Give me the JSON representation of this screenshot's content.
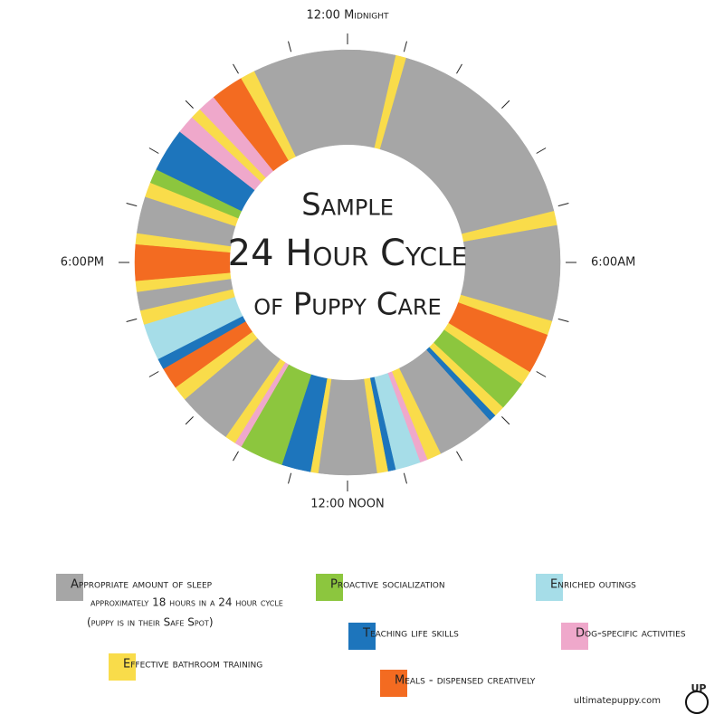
{
  "chart_data": {
    "type": "donut",
    "title": [
      "Sample",
      "24 Hour Cycle",
      "of Puppy Care"
    ],
    "xlim": [
      0,
      24
    ],
    "hour_ticks": [
      0,
      1,
      2,
      3,
      4,
      5,
      6,
      7,
      8,
      9,
      10,
      11,
      12,
      13,
      14,
      15,
      16,
      17,
      18,
      19,
      20,
      21,
      22,
      23
    ],
    "clock_labels": [
      {
        "value": 0,
        "label": "12:00 Midnight"
      },
      {
        "value": 6,
        "label": "6:00AM"
      },
      {
        "value": 12,
        "label": "12:00 NOON"
      },
      {
        "value": 18,
        "label": "6:00PM"
      }
    ],
    "series": [
      {
        "name": "Appropriate amount of sleep",
        "color": "#a6a6a6",
        "detail": [
          "approximately 18 hours in a 24 hour cycle",
          "(puppy is in their Safe Spot)"
        ]
      },
      {
        "name": "Effective bathroom training",
        "color": "#f9dc4a"
      },
      {
        "name": "Proactive socialization",
        "color": "#8cc63e"
      },
      {
        "name": "Teaching life skills",
        "color": "#1d75bc"
      },
      {
        "name": "Meals - dispensed creatively",
        "color": "#f36b21"
      },
      {
        "name": "Enriched outings",
        "color": "#a6dde8"
      },
      {
        "name": "Dog-specific activities",
        "color": "#efa8cb"
      }
    ],
    "segments": [
      {
        "series": 1,
        "start": 0.87,
        "end": 1.07
      },
      {
        "series": 0,
        "start": 1.07,
        "end": 5.07
      },
      {
        "series": 1,
        "start": 5.07,
        "end": 5.33
      },
      {
        "series": 0,
        "start": 5.33,
        "end": 7.07
      },
      {
        "series": 1,
        "start": 7.07,
        "end": 7.33
      },
      {
        "series": 4,
        "start": 7.33,
        "end": 8.07
      },
      {
        "series": 1,
        "start": 8.07,
        "end": 8.33
      },
      {
        "series": 2,
        "start": 8.33,
        "end": 8.87
      },
      {
        "series": 1,
        "start": 8.87,
        "end": 9.07
      },
      {
        "series": 3,
        "start": 9.07,
        "end": 9.2
      },
      {
        "series": 0,
        "start": 9.2,
        "end": 10.27
      },
      {
        "series": 1,
        "start": 10.27,
        "end": 10.53
      },
      {
        "series": 6,
        "start": 10.53,
        "end": 10.67
      },
      {
        "series": 5,
        "start": 10.67,
        "end": 11.13
      },
      {
        "series": 3,
        "start": 11.13,
        "end": 11.27
      },
      {
        "series": 1,
        "start": 11.27,
        "end": 11.47
      },
      {
        "series": 0,
        "start": 11.47,
        "end": 12.53
      },
      {
        "series": 1,
        "start": 12.53,
        "end": 12.67
      },
      {
        "series": 3,
        "start": 12.67,
        "end": 13.2
      },
      {
        "series": 2,
        "start": 13.2,
        "end": 14
      },
      {
        "series": 6,
        "start": 14,
        "end": 14.13
      },
      {
        "series": 1,
        "start": 14.13,
        "end": 14.33
      },
      {
        "series": 0,
        "start": 14.33,
        "end": 15.33
      },
      {
        "series": 1,
        "start": 15.33,
        "end": 15.6
      },
      {
        "series": 4,
        "start": 15.6,
        "end": 16
      },
      {
        "series": 3,
        "start": 16,
        "end": 16.2
      },
      {
        "series": 5,
        "start": 16.2,
        "end": 16.87
      },
      {
        "series": 1,
        "start": 16.87,
        "end": 17.13
      },
      {
        "series": 0,
        "start": 17.13,
        "end": 17.47
      },
      {
        "series": 1,
        "start": 17.47,
        "end": 17.67
      },
      {
        "series": 4,
        "start": 17.67,
        "end": 18.33
      },
      {
        "series": 1,
        "start": 18.33,
        "end": 18.53
      },
      {
        "series": 0,
        "start": 18.53,
        "end": 19.2
      },
      {
        "series": 1,
        "start": 19.2,
        "end": 19.47
      },
      {
        "series": 2,
        "start": 19.47,
        "end": 19.73
      },
      {
        "series": 3,
        "start": 19.73,
        "end": 20.53
      },
      {
        "series": 6,
        "start": 20.53,
        "end": 20.87
      },
      {
        "series": 1,
        "start": 20.87,
        "end": 21.07
      },
      {
        "series": 6,
        "start": 21.07,
        "end": 21.4
      },
      {
        "series": 4,
        "start": 21.4,
        "end": 22
      },
      {
        "series": 1,
        "start": 22,
        "end": 22.27
      },
      {
        "series": 0,
        "start": 22.27,
        "end": 24.87
      }
    ],
    "footer": "ultimatepuppy.com",
    "logo": "UP"
  }
}
